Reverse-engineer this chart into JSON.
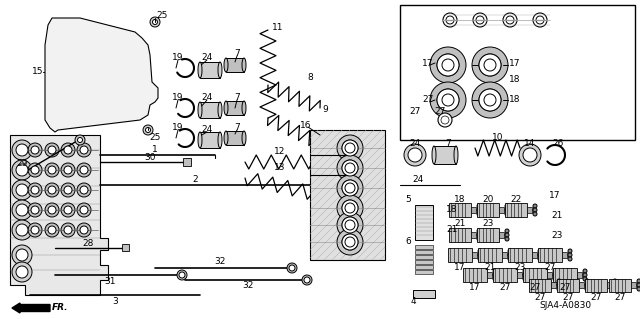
{
  "bg_color": "#ffffff",
  "diagram_id": "SJA4-A0830",
  "fig_width": 6.4,
  "fig_height": 3.19,
  "dpi": 100,
  "lc": "#1a1a1a",
  "gray1": "#c8c8c8",
  "gray2": "#e0e0e0",
  "gray3": "#a0a0a0"
}
